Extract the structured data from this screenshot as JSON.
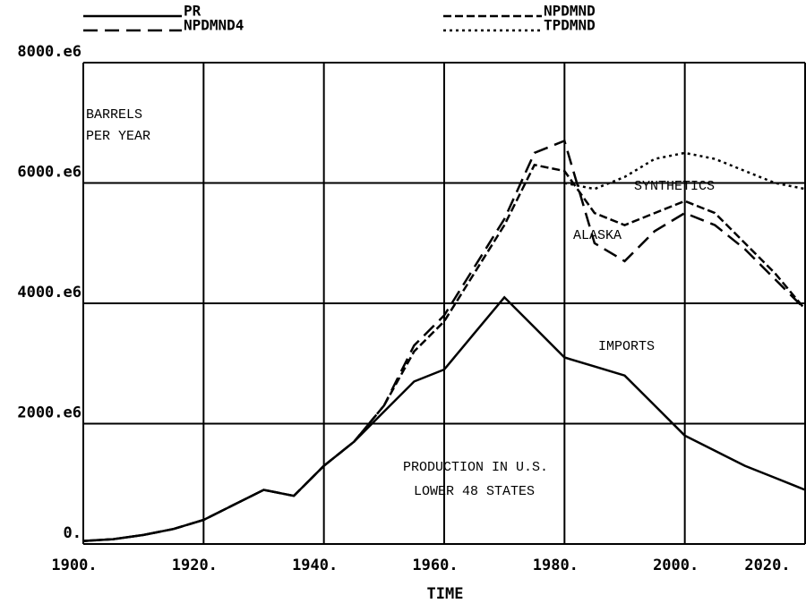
{
  "chart_data": {
    "type": "line",
    "xlabel": "TIME",
    "annotations": [
      "BARRELS",
      "PER YEAR",
      "SYNTHETICS",
      "ALASKA",
      "IMPORTS",
      "PRODUCTION IN U.S.",
      "LOWER  48 STATES"
    ],
    "x": [
      1900,
      1905,
      1910,
      1915,
      1920,
      1925,
      1930,
      1935,
      1940,
      1945,
      1950,
      1955,
      1960,
      1965,
      1970,
      1975,
      1980,
      1985,
      1990,
      1995,
      2000,
      2005,
      2010,
      2015,
      2020
    ],
    "series": [
      {
        "name": "PR",
        "color": "#000000",
        "dash": "solid",
        "values": [
          50000000,
          80000000,
          150000000,
          250000000,
          400000000,
          650000000,
          900000000,
          800000000,
          1300000000,
          1700000000,
          2200000000,
          2700000000,
          2900000000,
          3500000000,
          4100000000,
          3600000000,
          3100000000,
          2950000000,
          2800000000,
          2300000000,
          1800000000,
          1550000000,
          1300000000,
          1100000000,
          900000000
        ]
      },
      {
        "name": "NPDMND",
        "color": "#000000",
        "dash": "short-dash",
        "values": [
          50000000,
          80000000,
          150000000,
          250000000,
          400000000,
          650000000,
          900000000,
          800000000,
          1300000000,
          1700000000,
          2300000000,
          3200000000,
          3700000000,
          4500000000,
          5300000000,
          6300000000,
          6200000000,
          5500000000,
          5300000000,
          5500000000,
          5700000000,
          5500000000,
          5000000000,
          4500000000,
          3900000000
        ]
      },
      {
        "name": "NPDMND4",
        "color": "#000000",
        "dash": "long-dash",
        "values": [
          50000000,
          80000000,
          150000000,
          250000000,
          400000000,
          650000000,
          900000000,
          800000000,
          1300000000,
          1700000000,
          2300000000,
          3300000000,
          3800000000,
          4600000000,
          5400000000,
          6500000000,
          6700000000,
          5000000000,
          4700000000,
          5200000000,
          5500000000,
          5300000000,
          4900000000,
          4400000000,
          3900000000
        ]
      },
      {
        "name": "TPDMND",
        "color": "#000000",
        "dash": "dotted",
        "values": [
          null,
          null,
          null,
          null,
          null,
          null,
          null,
          null,
          null,
          null,
          null,
          null,
          null,
          null,
          null,
          null,
          6000000000,
          5900000000,
          6100000000,
          6400000000,
          6500000000,
          6400000000,
          6200000000,
          6000000000,
          5900000000
        ]
      }
    ],
    "xlim": [
      1900,
      2020
    ],
    "xticks": [
      {
        "value": 1900,
        "label": "1900."
      },
      {
        "value": 1920,
        "label": "1920."
      },
      {
        "value": 1940,
        "label": "1940."
      },
      {
        "value": 1960,
        "label": "1960."
      },
      {
        "value": 1980,
        "label": "1980."
      },
      {
        "value": 2000,
        "label": "2000."
      },
      {
        "value": 2020,
        "label": "2020."
      }
    ],
    "ylim": [
      0,
      8000000000
    ],
    "yticks": [
      {
        "value": 0,
        "label": "0."
      },
      {
        "value": 2000000000,
        "label": "2000.e6"
      },
      {
        "value": 4000000000,
        "label": "4000.e6"
      },
      {
        "value": 6000000000,
        "label": "6000.e6"
      },
      {
        "value": 8000000000,
        "label": "8000.e6"
      }
    ],
    "grid": true,
    "legend": "top"
  }
}
